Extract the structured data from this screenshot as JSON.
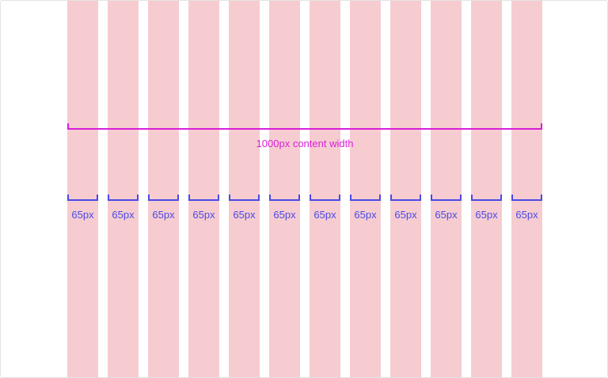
{
  "content_width_label": "1000px content width",
  "column_width_label": "65px",
  "column_count": 12,
  "colors": {
    "column_fill": "#f6ccd1",
    "content_width_marker": "#d81fd8",
    "column_width_marker": "#4a4ae6",
    "background": "#ffffff"
  }
}
